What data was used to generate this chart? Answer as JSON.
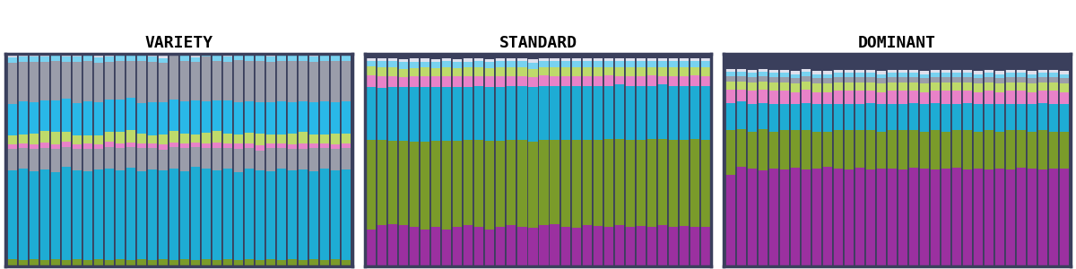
{
  "titles": [
    "VARIETY",
    "STANDARD",
    "DOMINANT"
  ],
  "n_bars": 32,
  "colors": {
    "purple": "#9B30A0",
    "olive": "#7A9B2A",
    "cyan_blue": "#1EACD4",
    "gray": "#9A9DAA",
    "light_green": "#BEDA6A",
    "pink": "#E882C8",
    "light_blue": "#78D2F0",
    "white_top": "#E0E0EC"
  },
  "background": "#FFFFFF",
  "border_color": "#3A3F5C",
  "title_fontsize": 13,
  "variety_layers": [
    {
      "key": "olive",
      "color": "#7A9B2A",
      "vals": [
        0.032,
        0.03,
        0.033,
        0.031,
        0.032,
        0.03,
        0.033,
        0.031,
        0.032,
        0.03,
        0.033,
        0.031,
        0.032,
        0.03,
        0.033,
        0.031,
        0.032,
        0.03,
        0.033,
        0.031,
        0.032,
        0.03,
        0.033,
        0.031,
        0.032,
        0.03,
        0.033,
        0.031,
        0.032,
        0.03,
        0.033,
        0.031
      ]
    },
    {
      "key": "cyan_main",
      "color": "#1EACD4",
      "vals": [
        0.42,
        0.43,
        0.415,
        0.425,
        0.41,
        0.44,
        0.42,
        0.415,
        0.425,
        0.43,
        0.42,
        0.435,
        0.415,
        0.425,
        0.42,
        0.43,
        0.415,
        0.44,
        0.425,
        0.42,
        0.43,
        0.415,
        0.425,
        0.42,
        0.415,
        0.43,
        0.42,
        0.425,
        0.415,
        0.43,
        0.42,
        0.425
      ]
    },
    {
      "key": "gray_mid",
      "color": "#9A9DAA",
      "vals": [
        0.1,
        0.095,
        0.105,
        0.1,
        0.11,
        0.09,
        0.1,
        0.108,
        0.095,
        0.1,
        0.105,
        0.095,
        0.108,
        0.1,
        0.095,
        0.1,
        0.108,
        0.09,
        0.1,
        0.105,
        0.095,
        0.108,
        0.1,
        0.095,
        0.108,
        0.095,
        0.1,
        0.095,
        0.108,
        0.095,
        0.1,
        0.1
      ]
    },
    {
      "key": "pink",
      "color": "#E882C8",
      "vals": [
        0.022,
        0.025,
        0.02,
        0.025,
        0.02,
        0.025,
        0.022,
        0.025,
        0.02,
        0.025,
        0.022,
        0.02,
        0.025,
        0.022,
        0.025,
        0.02,
        0.025,
        0.022,
        0.02,
        0.025,
        0.022,
        0.025,
        0.02,
        0.025,
        0.022,
        0.025,
        0.02,
        0.025,
        0.022,
        0.025,
        0.02,
        0.022
      ]
    },
    {
      "key": "light_green",
      "color": "#BEDA6A",
      "vals": [
        0.04,
        0.042,
        0.05,
        0.055,
        0.06,
        0.048,
        0.042,
        0.038,
        0.045,
        0.05,
        0.055,
        0.06,
        0.045,
        0.04,
        0.048,
        0.055,
        0.045,
        0.04,
        0.05,
        0.055,
        0.045,
        0.042,
        0.05,
        0.055,
        0.045,
        0.042,
        0.05,
        0.055,
        0.045,
        0.042,
        0.05,
        0.048
      ]
    },
    {
      "key": "cyan_top",
      "color": "#29B8E8",
      "vals": [
        0.15,
        0.155,
        0.148,
        0.145,
        0.148,
        0.155,
        0.152,
        0.158,
        0.155,
        0.148,
        0.15,
        0.152,
        0.145,
        0.155,
        0.15,
        0.148,
        0.152,
        0.158,
        0.148,
        0.145,
        0.155,
        0.152,
        0.148,
        0.145,
        0.152,
        0.155,
        0.148,
        0.145,
        0.152,
        0.155,
        0.148,
        0.15
      ]
    },
    {
      "key": "gray_top",
      "color": "#9A9DAA",
      "vals": [
        0.195,
        0.185,
        0.19,
        0.18,
        0.185,
        0.175,
        0.195,
        0.19,
        0.185,
        0.18,
        0.18,
        0.175,
        0.195,
        0.19,
        0.185,
        0.21,
        0.188,
        0.18,
        0.21,
        0.185,
        0.185,
        0.2,
        0.19,
        0.195,
        0.19,
        0.188,
        0.195,
        0.19,
        0.19,
        0.188,
        0.195,
        0.19
      ]
    },
    {
      "key": "light_blue",
      "color": "#78D2F0",
      "vals": [
        0.025,
        0.025,
        0.025,
        0.025,
        0.025,
        0.025,
        0.025,
        0.025,
        0.025,
        0.025,
        0.025,
        0.025,
        0.025,
        0.025,
        0.025,
        0.025,
        0.025,
        0.025,
        0.025,
        0.025,
        0.025,
        0.025,
        0.025,
        0.025,
        0.025,
        0.025,
        0.025,
        0.025,
        0.025,
        0.025,
        0.025,
        0.025
      ]
    },
    {
      "key": "white_top",
      "color": "#E0E0EC",
      "vals": [
        0.016,
        0.013,
        0.014,
        0.014,
        0.01,
        0.012,
        0.011,
        0.01,
        0.013,
        0.012,
        0.01,
        0.012,
        0.01,
        0.013,
        0.012,
        0.012,
        0.01,
        0.013,
        0.01,
        0.01,
        0.011,
        0.013,
        0.014,
        0.014,
        0.014,
        0.015,
        0.014,
        0.014,
        0.014,
        0.015,
        0.014,
        0.014
      ]
    }
  ],
  "standard_layers": [
    {
      "key": "purple",
      "color": "#9B30A0",
      "vals": [
        0.175,
        0.195,
        0.2,
        0.195,
        0.185,
        0.175,
        0.185,
        0.175,
        0.185,
        0.195,
        0.185,
        0.175,
        0.185,
        0.195,
        0.185,
        0.18,
        0.195,
        0.2,
        0.185,
        0.18,
        0.195,
        0.19,
        0.185,
        0.195,
        0.185,
        0.19,
        0.185,
        0.195,
        0.185,
        0.19,
        0.185,
        0.185
      ]
    },
    {
      "key": "olive",
      "color": "#7A9B2A",
      "vals": [
        0.42,
        0.4,
        0.39,
        0.395,
        0.4,
        0.41,
        0.405,
        0.415,
        0.405,
        0.4,
        0.41,
        0.415,
        0.405,
        0.4,
        0.41,
        0.405,
        0.4,
        0.395,
        0.41,
        0.415,
        0.4,
        0.405,
        0.415,
        0.405,
        0.41,
        0.405,
        0.415,
        0.405,
        0.41,
        0.405,
        0.415,
        0.41
      ]
    },
    {
      "key": "cyan_main",
      "color": "#1EACD4",
      "vals": [
        0.25,
        0.245,
        0.255,
        0.255,
        0.26,
        0.26,
        0.255,
        0.255,
        0.255,
        0.25,
        0.255,
        0.255,
        0.255,
        0.255,
        0.255,
        0.26,
        0.255,
        0.255,
        0.255,
        0.255,
        0.255,
        0.255,
        0.25,
        0.255,
        0.255,
        0.255,
        0.25,
        0.255,
        0.255,
        0.255,
        0.25,
        0.255
      ]
    },
    {
      "key": "pink",
      "color": "#E882C8",
      "vals": [
        0.055,
        0.055,
        0.05,
        0.045,
        0.048,
        0.05,
        0.048,
        0.05,
        0.048,
        0.05,
        0.045,
        0.048,
        0.05,
        0.045,
        0.045,
        0.045,
        0.048,
        0.045,
        0.045,
        0.045,
        0.045,
        0.045,
        0.048,
        0.04,
        0.045,
        0.045,
        0.048,
        0.04,
        0.045,
        0.045,
        0.048,
        0.045
      ]
    },
    {
      "key": "light_green",
      "color": "#BEDA6A",
      "vals": [
        0.04,
        0.04,
        0.04,
        0.04,
        0.04,
        0.04,
        0.04,
        0.04,
        0.04,
        0.04,
        0.04,
        0.04,
        0.04,
        0.04,
        0.04,
        0.04,
        0.04,
        0.04,
        0.04,
        0.04,
        0.04,
        0.04,
        0.04,
        0.04,
        0.04,
        0.04,
        0.04,
        0.04,
        0.04,
        0.04,
        0.04,
        0.04
      ]
    },
    {
      "key": "light_blue",
      "color": "#78D2F0",
      "vals": [
        0.025,
        0.03,
        0.03,
        0.03,
        0.03,
        0.028,
        0.027,
        0.03,
        0.027,
        0.028,
        0.03,
        0.027,
        0.03,
        0.03,
        0.03,
        0.028,
        0.027,
        0.03,
        0.03,
        0.03,
        0.03,
        0.03,
        0.027,
        0.03,
        0.03,
        0.03,
        0.027,
        0.03,
        0.03,
        0.03,
        0.027,
        0.03
      ]
    },
    {
      "key": "white_top",
      "color": "#E0E0EC",
      "vals": [
        0.015,
        0.015,
        0.015,
        0.015,
        0.015,
        0.015,
        0.015,
        0.015,
        0.015,
        0.015,
        0.015,
        0.015,
        0.015,
        0.015,
        0.015,
        0.015,
        0.015,
        0.015,
        0.015,
        0.015,
        0.015,
        0.015,
        0.015,
        0.015,
        0.015,
        0.015,
        0.015,
        0.015,
        0.015,
        0.015,
        0.015,
        0.015
      ]
    }
  ],
  "dominant_layers": [
    {
      "key": "purple",
      "color": "#9B30A0",
      "vals": [
        0.43,
        0.47,
        0.46,
        0.45,
        0.46,
        0.455,
        0.465,
        0.455,
        0.46,
        0.47,
        0.46,
        0.455,
        0.465,
        0.455,
        0.46,
        0.46,
        0.455,
        0.465,
        0.46,
        0.455,
        0.46,
        0.465,
        0.455,
        0.46,
        0.455,
        0.46,
        0.455,
        0.465,
        0.46,
        0.455,
        0.46,
        0.46
      ]
    },
    {
      "key": "olive",
      "color": "#7A9B2A",
      "vals": [
        0.21,
        0.175,
        0.175,
        0.195,
        0.175,
        0.185,
        0.175,
        0.185,
        0.175,
        0.165,
        0.18,
        0.185,
        0.175,
        0.185,
        0.175,
        0.18,
        0.185,
        0.175,
        0.175,
        0.185,
        0.175,
        0.175,
        0.185,
        0.175,
        0.185,
        0.175,
        0.185,
        0.175,
        0.175,
        0.185,
        0.175,
        0.175
      ]
    },
    {
      "key": "cyan_main",
      "color": "#1EACD4",
      "vals": [
        0.13,
        0.13,
        0.13,
        0.125,
        0.13,
        0.125,
        0.125,
        0.13,
        0.13,
        0.13,
        0.125,
        0.125,
        0.125,
        0.13,
        0.13,
        0.125,
        0.125,
        0.13,
        0.13,
        0.13,
        0.13,
        0.125,
        0.13,
        0.13,
        0.125,
        0.13,
        0.125,
        0.125,
        0.13,
        0.13,
        0.13,
        0.13
      ]
    },
    {
      "key": "pink",
      "color": "#E882C8",
      "vals": [
        0.06,
        0.055,
        0.06,
        0.06,
        0.06,
        0.06,
        0.055,
        0.06,
        0.055,
        0.055,
        0.06,
        0.06,
        0.06,
        0.055,
        0.055,
        0.06,
        0.06,
        0.055,
        0.055,
        0.055,
        0.06,
        0.06,
        0.055,
        0.055,
        0.06,
        0.055,
        0.06,
        0.06,
        0.055,
        0.055,
        0.06,
        0.055
      ]
    },
    {
      "key": "light_green",
      "color": "#BEDA6A",
      "vals": [
        0.04,
        0.04,
        0.04,
        0.04,
        0.04,
        0.04,
        0.04,
        0.04,
        0.04,
        0.04,
        0.04,
        0.04,
        0.04,
        0.04,
        0.04,
        0.04,
        0.04,
        0.04,
        0.04,
        0.04,
        0.04,
        0.04,
        0.04,
        0.04,
        0.04,
        0.04,
        0.04,
        0.04,
        0.04,
        0.04,
        0.04,
        0.04
      ]
    },
    {
      "key": "gray_top",
      "color": "#9A9DAA",
      "vals": [
        0.025,
        0.025,
        0.025,
        0.025,
        0.025,
        0.025,
        0.025,
        0.025,
        0.025,
        0.025,
        0.025,
        0.025,
        0.025,
        0.025,
        0.025,
        0.025,
        0.025,
        0.025,
        0.025,
        0.025,
        0.025,
        0.025,
        0.025,
        0.025,
        0.025,
        0.025,
        0.025,
        0.025,
        0.025,
        0.025,
        0.025,
        0.025
      ]
    },
    {
      "key": "light_blue",
      "color": "#78D2F0",
      "vals": [
        0.02,
        0.02,
        0.02,
        0.02,
        0.02,
        0.02,
        0.02,
        0.02,
        0.02,
        0.02,
        0.02,
        0.02,
        0.02,
        0.02,
        0.02,
        0.02,
        0.02,
        0.02,
        0.02,
        0.02,
        0.02,
        0.02,
        0.02,
        0.02,
        0.02,
        0.02,
        0.02,
        0.02,
        0.02,
        0.02,
        0.02,
        0.02
      ]
    },
    {
      "key": "white_top",
      "color": "#E0E0EC",
      "vals": [
        0.015,
        0.015,
        0.015,
        0.015,
        0.015,
        0.015,
        0.015,
        0.015,
        0.015,
        0.015,
        0.015,
        0.015,
        0.015,
        0.015,
        0.015,
        0.015,
        0.015,
        0.015,
        0.015,
        0.015,
        0.015,
        0.015,
        0.015,
        0.015,
        0.015,
        0.015,
        0.015,
        0.015,
        0.015,
        0.015,
        0.015,
        0.015
      ]
    }
  ]
}
